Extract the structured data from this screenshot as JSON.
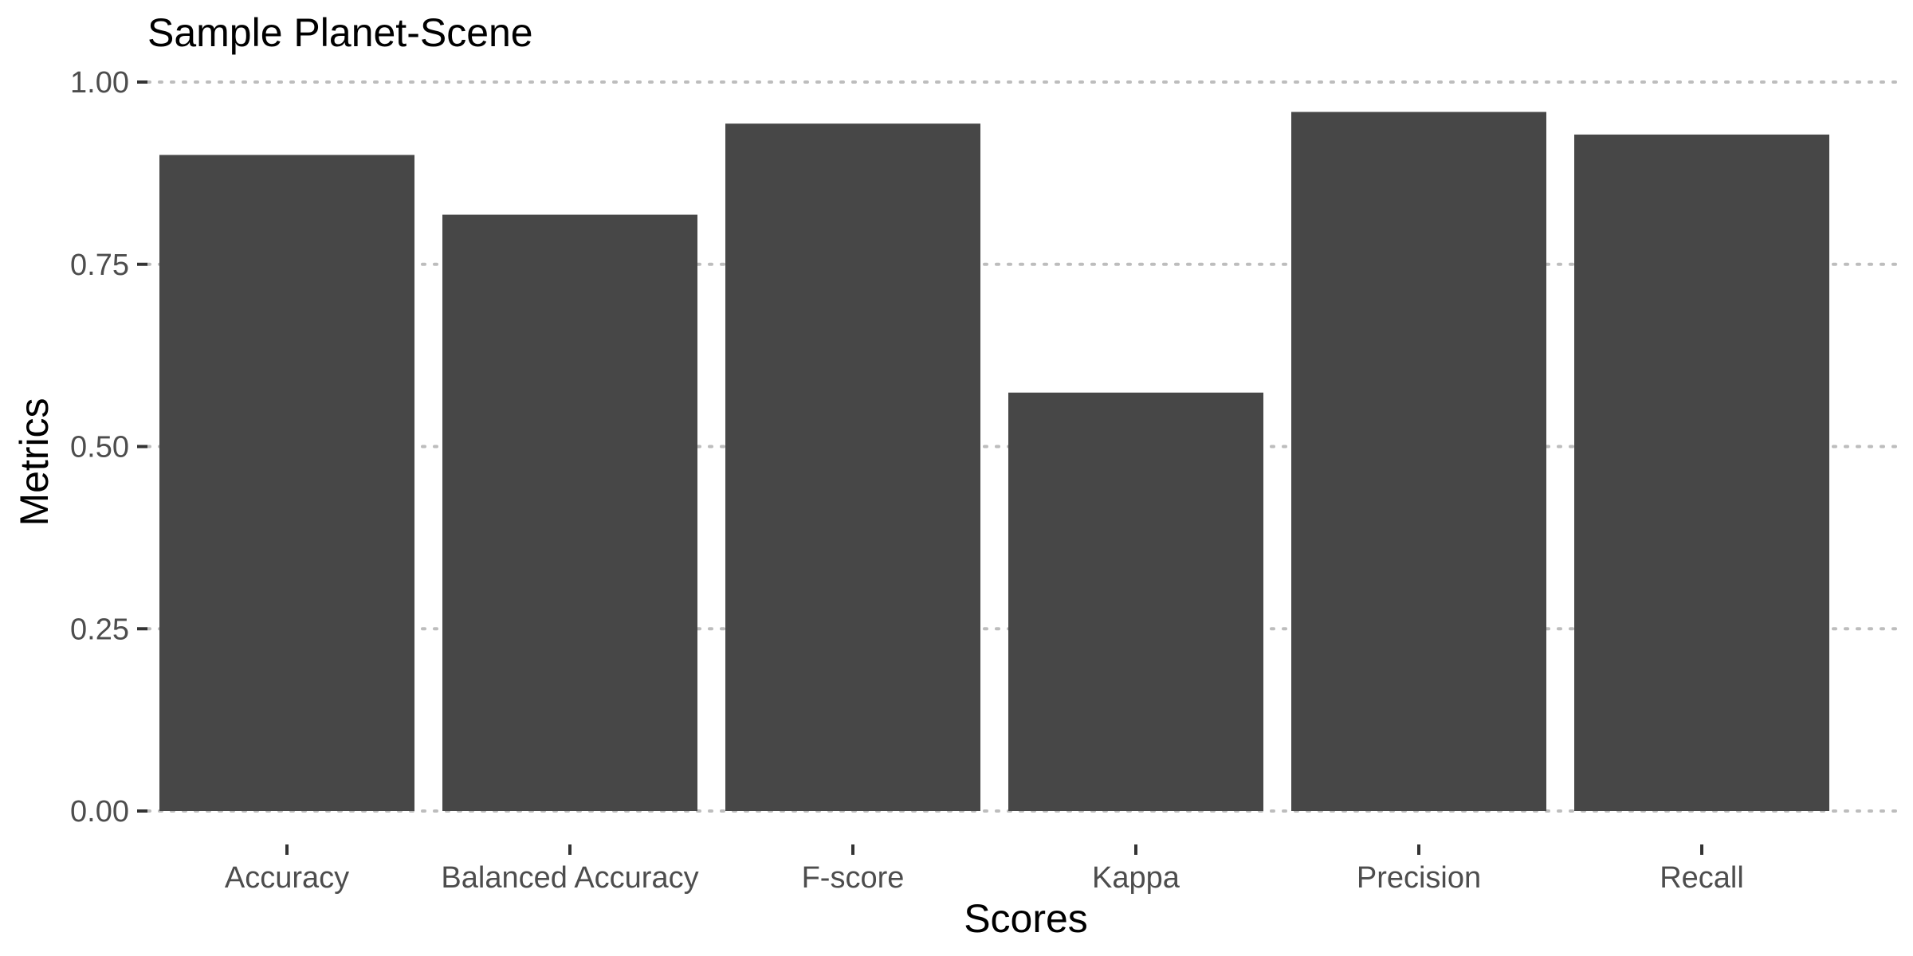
{
  "chart_data": {
    "type": "bar",
    "title": "Sample Planet-Scene",
    "xlabel": "Scores",
    "ylabel": "Metrics",
    "categories": [
      "Accuracy",
      "Balanced Accuracy",
      "F-score",
      "Kappa",
      "Precision",
      "Recall"
    ],
    "values": [
      0.9,
      0.818,
      0.943,
      0.574,
      0.959,
      0.928
    ],
    "ylim": [
      0,
      1
    ],
    "yticks": [
      "0.00",
      "0.25",
      "0.50",
      "0.75",
      "1.00"
    ],
    "bar_color": "#474747",
    "grid_color": "#bdbdbd",
    "grid": true,
    "legend": "none"
  }
}
